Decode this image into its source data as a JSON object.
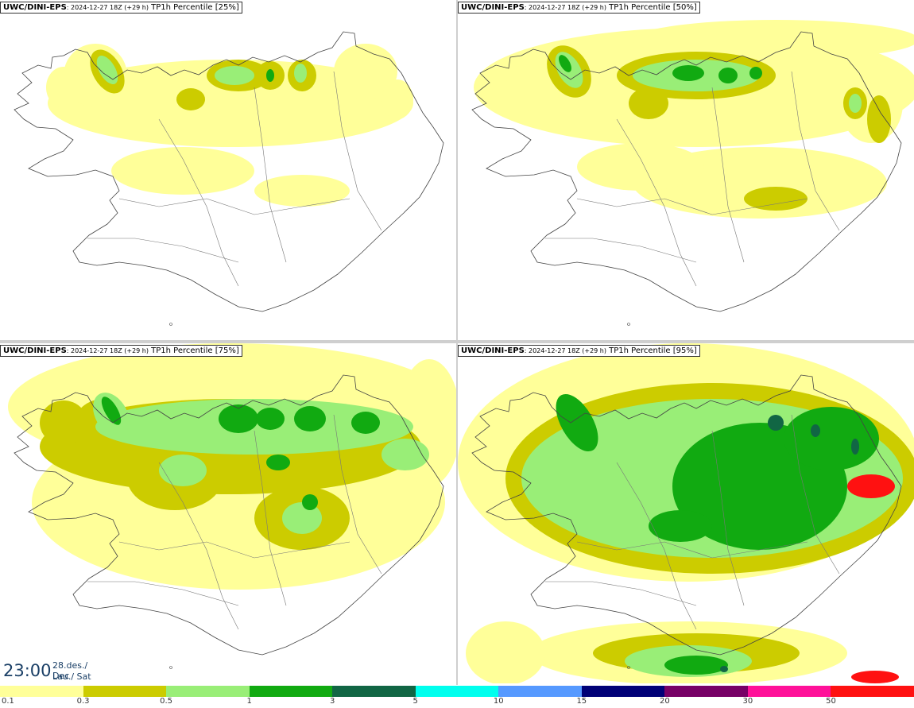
{
  "panels": [
    {
      "model": "UWC/DINI-EPS",
      "run": ": 2024-12-27 18Z (+29 h)",
      "desc": " TP1h Percentile [25%]",
      "level": 0
    },
    {
      "model": "UWC/DINI-EPS",
      "run": ": 2024-12-27 18Z (+29 h)",
      "desc": " TP1h Percentile [50%]",
      "level": 1
    },
    {
      "model": "UWC/DINI-EPS",
      "run": ": 2024-12-27 18Z (+29 h)",
      "desc": " TP1h Percentile [75%]",
      "level": 2
    },
    {
      "model": "UWC/DINI-EPS",
      "run": ": 2024-12-27 18Z (+29 h)",
      "desc": " TP1h Percentile [95%]",
      "level": 3
    }
  ],
  "valid_time": {
    "time": "23:00",
    "date_line1": "28.des./ Dec",
    "date_line2": "Lau./ Sat"
  },
  "legend": {
    "colors": [
      "#ffff99",
      "#cccc00",
      "#99ee77",
      "#11aa11",
      "#116644",
      "#00ffee",
      "#5599ff",
      "#000077",
      "#770066",
      "#ff1199",
      "#ff1111"
    ],
    "labels": [
      "0.1",
      "0.3",
      "0.5",
      "1",
      "3",
      "5",
      "10",
      "15",
      "20",
      "30",
      "50"
    ]
  }
}
